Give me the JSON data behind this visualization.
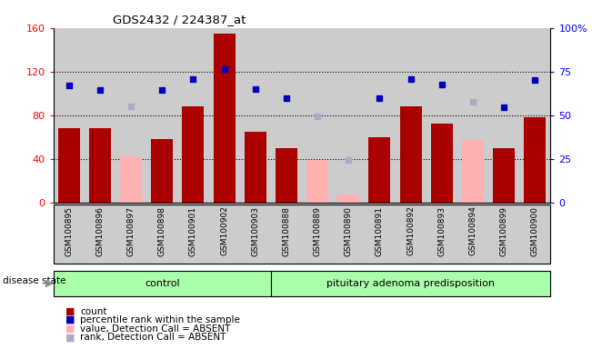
{
  "title": "GDS2432 / 224387_at",
  "samples": [
    "GSM100895",
    "GSM100896",
    "GSM100897",
    "GSM100898",
    "GSM100901",
    "GSM100902",
    "GSM100903",
    "GSM100888",
    "GSM100889",
    "GSM100890",
    "GSM100891",
    "GSM100892",
    "GSM100893",
    "GSM100894",
    "GSM100899",
    "GSM100900"
  ],
  "n_control": 7,
  "count_values": [
    68,
    68,
    null,
    58,
    88,
    155,
    65,
    50,
    null,
    null,
    60,
    88,
    72,
    null,
    50,
    78
  ],
  "absent_value_values": [
    null,
    null,
    42,
    null,
    null,
    null,
    null,
    null,
    39,
    7,
    null,
    null,
    null,
    57,
    null,
    null
  ],
  "percentile_rank_left": [
    107,
    103,
    null,
    103,
    113,
    122,
    104,
    96,
    null,
    null,
    96,
    113,
    108,
    null,
    87,
    112
  ],
  "absent_rank_left": [
    null,
    null,
    88,
    null,
    null,
    null,
    null,
    null,
    79,
    39,
    null,
    null,
    null,
    92,
    null,
    null
  ],
  "ylim_left": [
    0,
    160
  ],
  "ylim_right": [
    0,
    100
  ],
  "yticks_left": [
    0,
    40,
    80,
    120,
    160
  ],
  "yticks_right": [
    0,
    25,
    50,
    75,
    100
  ],
  "ytick_labels_left": [
    "0",
    "40",
    "80",
    "120",
    "160"
  ],
  "ytick_labels_right": [
    "0",
    "25",
    "50",
    "75",
    "100%"
  ],
  "bar_color_red": "#AA0000",
  "bar_color_pink": "#FFB0B0",
  "dot_color_blue": "#0000BB",
  "dot_color_lightblue": "#AAAACC",
  "background_color": "#CCCCCC",
  "control_label": "control",
  "disease_label": "pituitary adenoma predisposition",
  "disease_state_label": "disease state",
  "group_box_color": "#AAFFAA",
  "legend_items": [
    {
      "label": "count",
      "color": "#AA0000",
      "type": "square"
    },
    {
      "label": "percentile rank within the sample",
      "color": "#0000BB",
      "type": "square"
    },
    {
      "label": "value, Detection Call = ABSENT",
      "color": "#FFB0B0",
      "type": "square"
    },
    {
      "label": "rank, Detection Call = ABSENT",
      "color": "#AAAACC",
      "type": "square"
    }
  ]
}
